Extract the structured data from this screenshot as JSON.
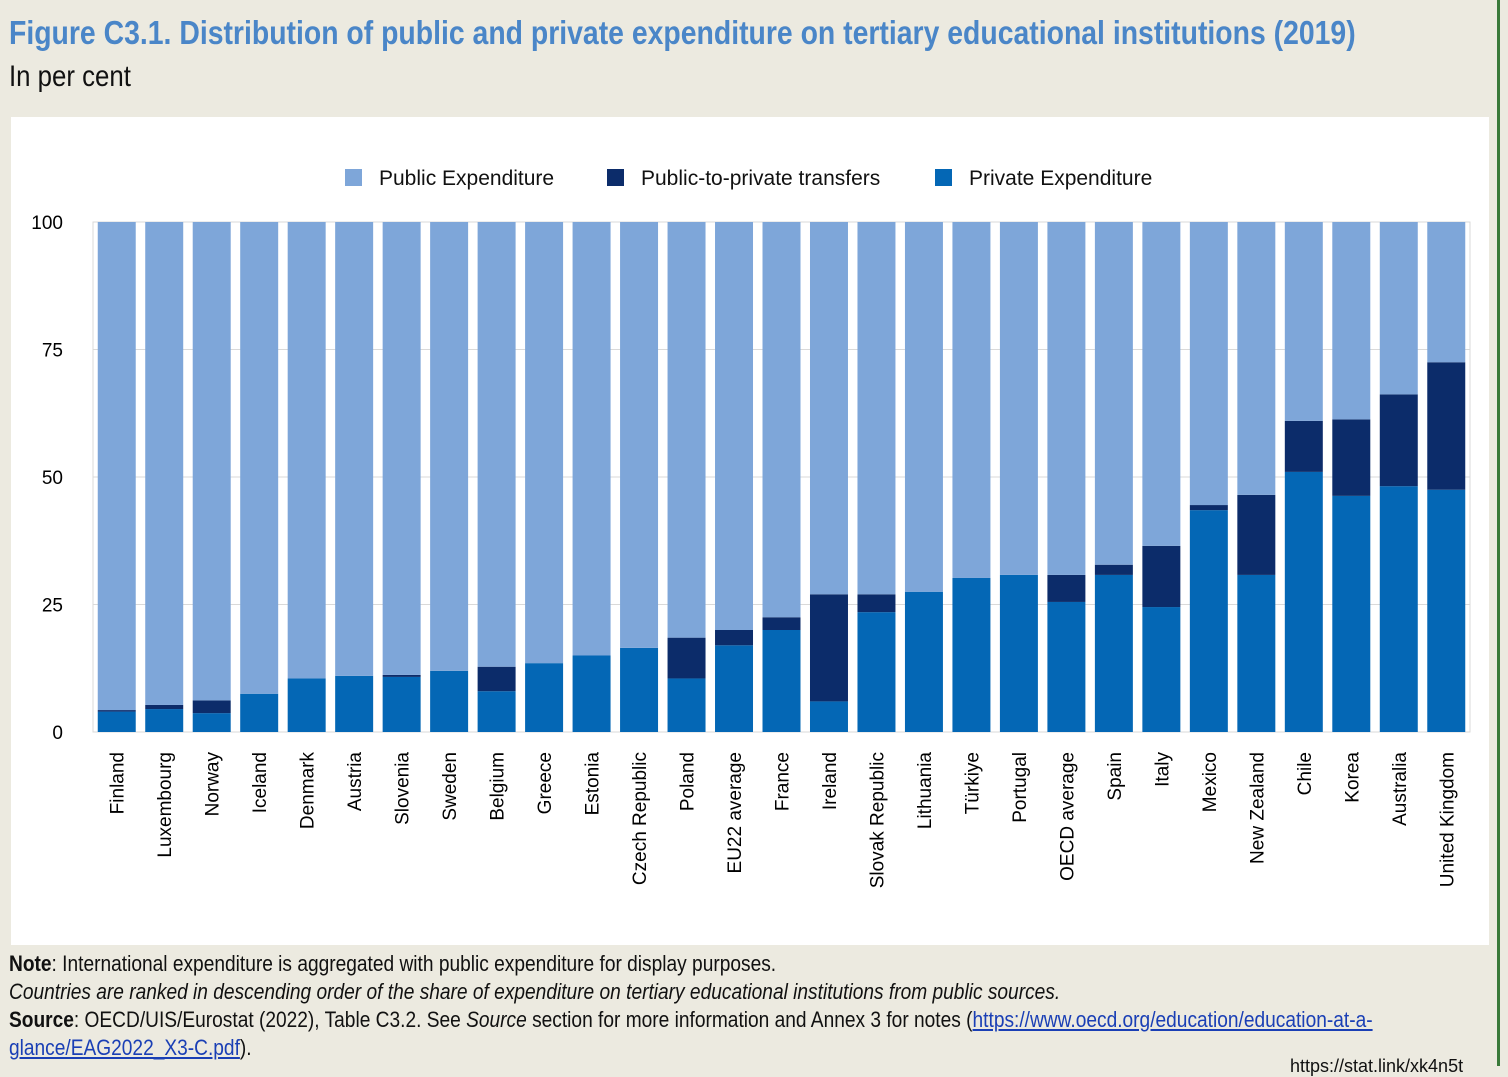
{
  "header": {
    "title": "Figure C3.1. Distribution of public and private expenditure on tertiary educational institutions (2019)",
    "subtitle": "In per cent"
  },
  "notes": {
    "note_label": "Note",
    "note_text": ": International expenditure is aggregated with public expenditure for display purposes.",
    "ranking_text": "Countries are ranked in descending order of the share of expenditure on tertiary educational institutions from public sources.",
    "source_label": "Source",
    "source_text_1": ": OECD/UIS/Eurostat (2022), Table C3.2. See ",
    "source_italic": "Source",
    "source_text_2": " section for more information and Annex 3 for notes (",
    "source_link_1": "https://www.oecd.org/education/education-at-a-",
    "source_link_2": "glance/EAG2022_X3-C.pdf",
    "source_end": ")."
  },
  "footer": {
    "url": "https://stat.link/xk4n5t"
  },
  "colors": {
    "public": "#7ea6d9",
    "transfers": "#0c2c6a",
    "private": "#0467b5",
    "title": "#4a86c8",
    "grid": "#d9d9d9"
  },
  "chart_data": {
    "type": "bar",
    "stacked": true,
    "ylim": [
      0,
      100
    ],
    "yticks": [
      0,
      25,
      50,
      75,
      100
    ],
    "legend_position": "top",
    "categories": [
      "Finland",
      "Luxembourg",
      "Norway",
      "Iceland",
      "Denmark",
      "Austria",
      "Slovenia",
      "Sweden",
      "Belgium",
      "Greece",
      "Estonia",
      "Czech Republic",
      "Poland",
      "EU22 average",
      "France",
      "Ireland",
      "Slovak Republic",
      "Lithuania",
      "Türkiye",
      "Portugal",
      "OECD average",
      "Spain",
      "Italy",
      "Mexico",
      "New Zealand",
      "Chile",
      "Korea",
      "Australia",
      "United Kingdom"
    ],
    "series": [
      {
        "name": "Private Expenditure",
        "color": "#0467b5",
        "values": [
          4,
          4.5,
          3.7,
          7.5,
          10.5,
          11,
          10.8,
          12,
          8,
          13.5,
          15,
          16.5,
          10.5,
          17,
          20,
          6,
          23.5,
          27.5,
          30.2,
          30.8,
          25.5,
          30.8,
          24.5,
          43.5,
          30.8,
          51,
          46.3,
          48.2,
          47.5
        ]
      },
      {
        "name": "Public-to-private transfers",
        "color": "#0c2c6a",
        "values": [
          0.3,
          0.8,
          2.5,
          0,
          0,
          0,
          0.4,
          0,
          4.8,
          0,
          0,
          0,
          8,
          3,
          2.5,
          21,
          3.5,
          0,
          0,
          0,
          5.3,
          2,
          12,
          1,
          15.7,
          10,
          15,
          18,
          25
        ]
      },
      {
        "name": "Public Expenditure",
        "color": "#7ea6d9",
        "values": [
          95.7,
          94.7,
          93.8,
          92.5,
          89.5,
          89,
          88.8,
          88,
          87.2,
          86.5,
          85,
          83.5,
          81.5,
          80,
          77.5,
          73,
          73,
          72.5,
          69.8,
          69.2,
          69.2,
          67.2,
          63.5,
          55.5,
          53.5,
          39,
          38.7,
          33.8,
          27.5
        ]
      }
    ]
  }
}
